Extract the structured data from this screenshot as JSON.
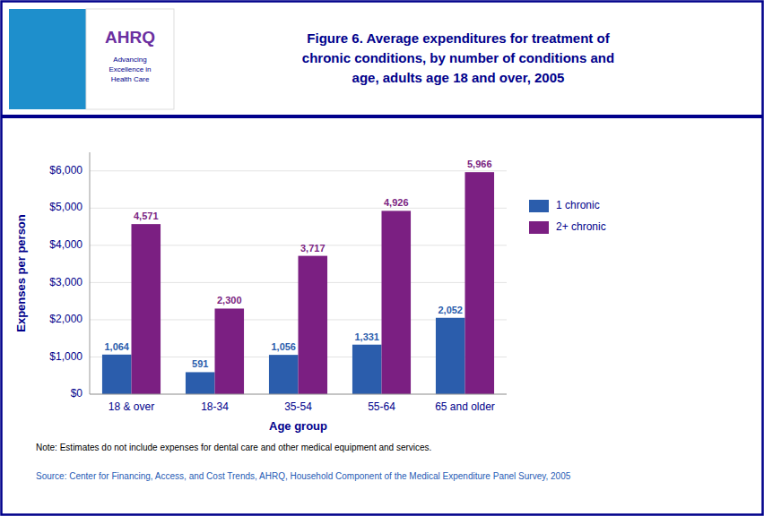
{
  "chart_data": {
    "type": "bar",
    "title": "Figure 6. Average expenditures for treatment of\nchronic conditions, by number of conditions and\nage, adults age 18 and over, 2005",
    "xlabel": "Age group",
    "ylabel": "Expenses per person",
    "categories": [
      "18 & over",
      "18-34",
      "35-54",
      "55-64",
      "65 and older"
    ],
    "series": [
      {
        "name": "1 chronic",
        "color": "#2B5DAC",
        "values": [
          1064,
          591,
          1056,
          1331,
          2052
        ],
        "value_labels": [
          "1,064",
          "591",
          "1,056",
          "1,331",
          "2,052"
        ]
      },
      {
        "name": "2+ chronic",
        "color": "#7B1F82",
        "values": [
          4571,
          2300,
          3717,
          4926,
          5966
        ],
        "value_labels": [
          "4,571",
          "2,300",
          "3,717",
          "4,926",
          "5,966"
        ]
      }
    ],
    "ylim": [
      0,
      6500
    ],
    "yticks": [
      {
        "value": 0,
        "label": "$0"
      },
      {
        "value": 1000,
        "label": "$1,000"
      },
      {
        "value": 2000,
        "label": "$2,000"
      },
      {
        "value": 3000,
        "label": "$3,000"
      },
      {
        "value": 4000,
        "label": "$4,000"
      },
      {
        "value": 5000,
        "label": "$5,000"
      },
      {
        "value": 6000,
        "label": "$6,000"
      }
    ],
    "grid": true,
    "legend": "right",
    "data_labels": true,
    "annotations": [
      "AHRQ",
      "Advancing\nExcellence in\nHealth Care",
      "Note:   Estimates do not include expenses for dental care and other medical equipment and services.",
      "Source:  Center for Financing, Access, and Cost Trends, AHRQ, Household Component of the Medical Expenditure Panel Survey, 2005"
    ]
  }
}
